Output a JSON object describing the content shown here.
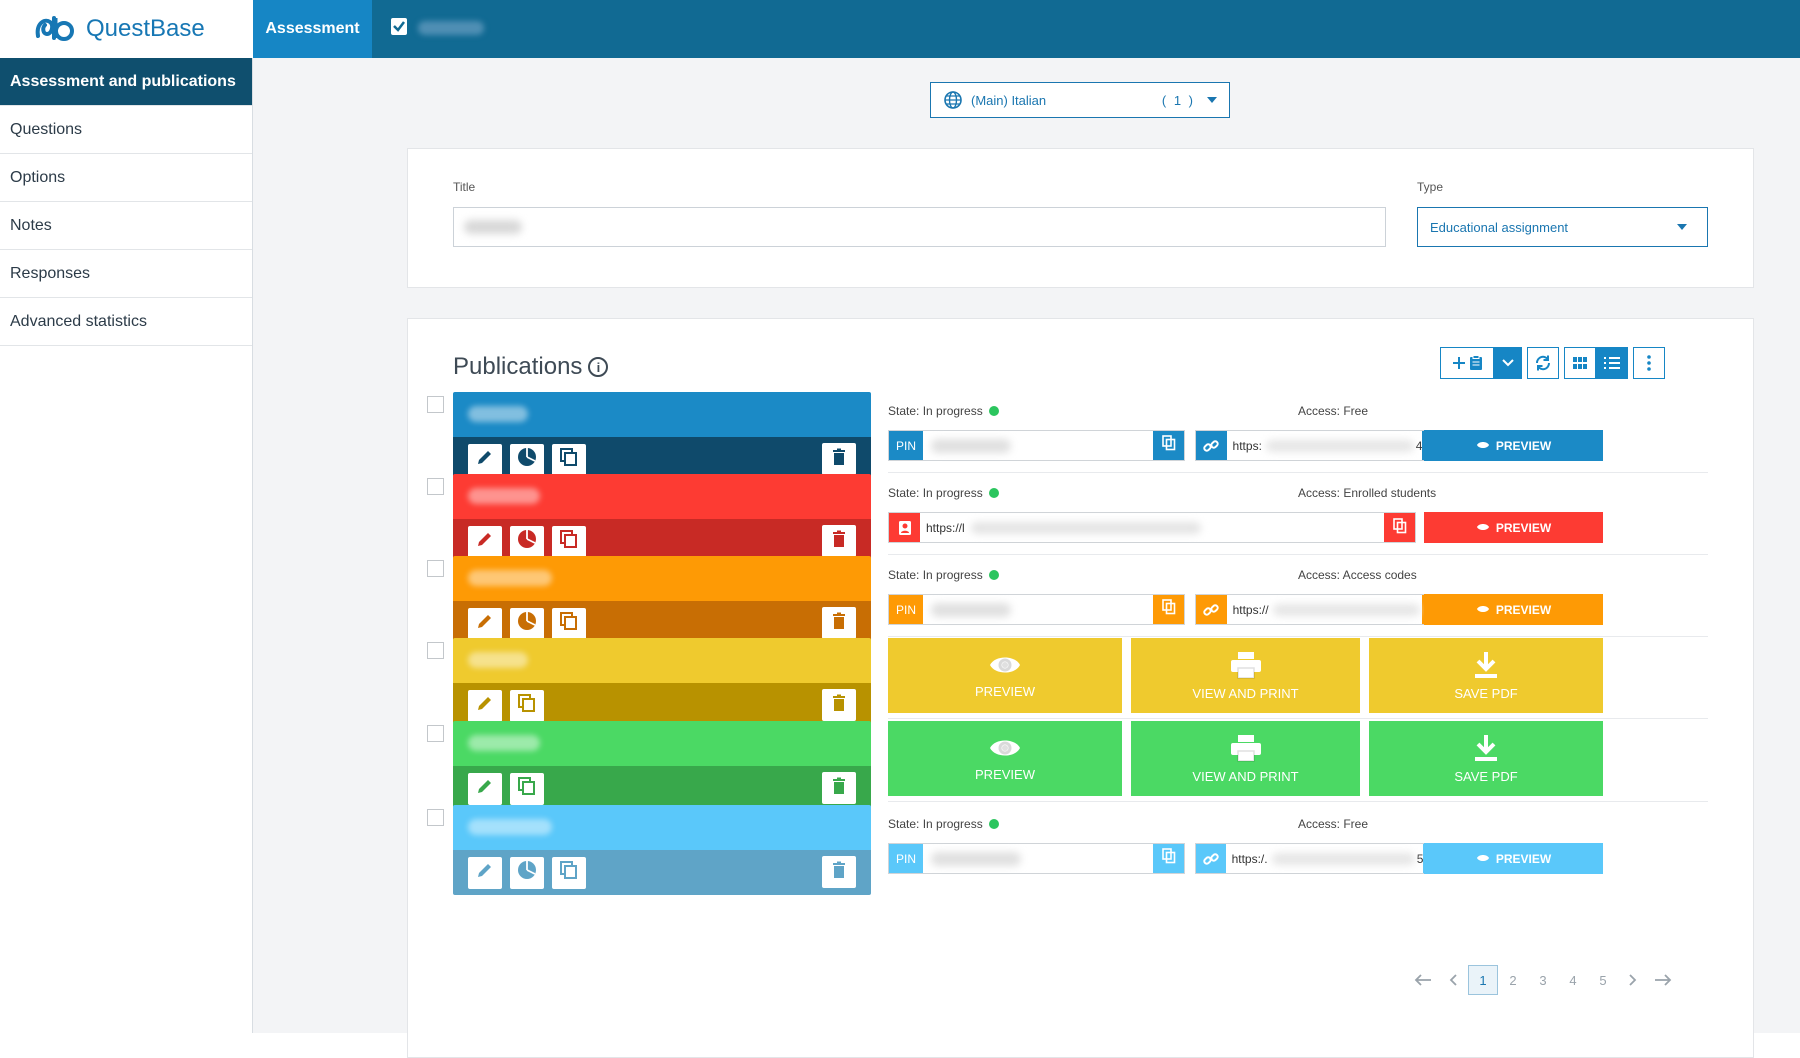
{
  "app": {
    "name": "QuestBase",
    "active_tab": "Assessment"
  },
  "sidebar": {
    "items": [
      {
        "label": "Assessment and publications",
        "active": true
      },
      {
        "label": "Questions"
      },
      {
        "label": "Options"
      },
      {
        "label": "Notes"
      },
      {
        "label": "Responses"
      },
      {
        "label": "Advanced statistics"
      }
    ]
  },
  "language": {
    "label": "(Main) Italian",
    "count": "( 1 )"
  },
  "form": {
    "title_label": "Title",
    "type_label": "Type",
    "type_value": "Educational assignment"
  },
  "publications": {
    "heading": "Publications",
    "rows": [
      {
        "color": "#1b8ac6",
        "dark": "#0f4a6b",
        "kind": "link",
        "state": "State: In progress",
        "access": "Access: Free",
        "pin_label": "PIN",
        "url": "https:",
        "url_tail": "4",
        "preview": "PREVIEW"
      },
      {
        "color": "#fd3b33",
        "dark": "#c82a25",
        "kind": "enrolled",
        "state": "State: In progress",
        "access": "Access: Enrolled students",
        "url": "https://l",
        "preview": "PREVIEW"
      },
      {
        "color": "#fe9a05",
        "dark": "#c86e04",
        "kind": "link",
        "state": "State: In progress",
        "access": "Access: Access codes",
        "pin_label": "PIN",
        "url": "https://",
        "url_tail": "",
        "preview": "PREVIEW"
      },
      {
        "color": "#efca2e",
        "dark": "#b89200",
        "kind": "print",
        "b1": "PREVIEW",
        "b2": "VIEW AND PRINT",
        "b3": "SAVE PDF"
      },
      {
        "color": "#4bd964",
        "dark": "#38a84b",
        "kind": "print",
        "b1": "PREVIEW",
        "b2": "VIEW AND PRINT",
        "b3": "SAVE PDF"
      },
      {
        "color": "#5ac8fa",
        "dark": "#5fa4c7",
        "kind": "link",
        "state": "State: In progress",
        "access": "Access: Free",
        "pin_label": "PIN",
        "url": "https:/.",
        "url_tail": "5",
        "preview": "PREVIEW"
      }
    ]
  },
  "pagination": {
    "pages": [
      "1",
      "2",
      "3",
      "4",
      "5"
    ],
    "current": "1"
  }
}
